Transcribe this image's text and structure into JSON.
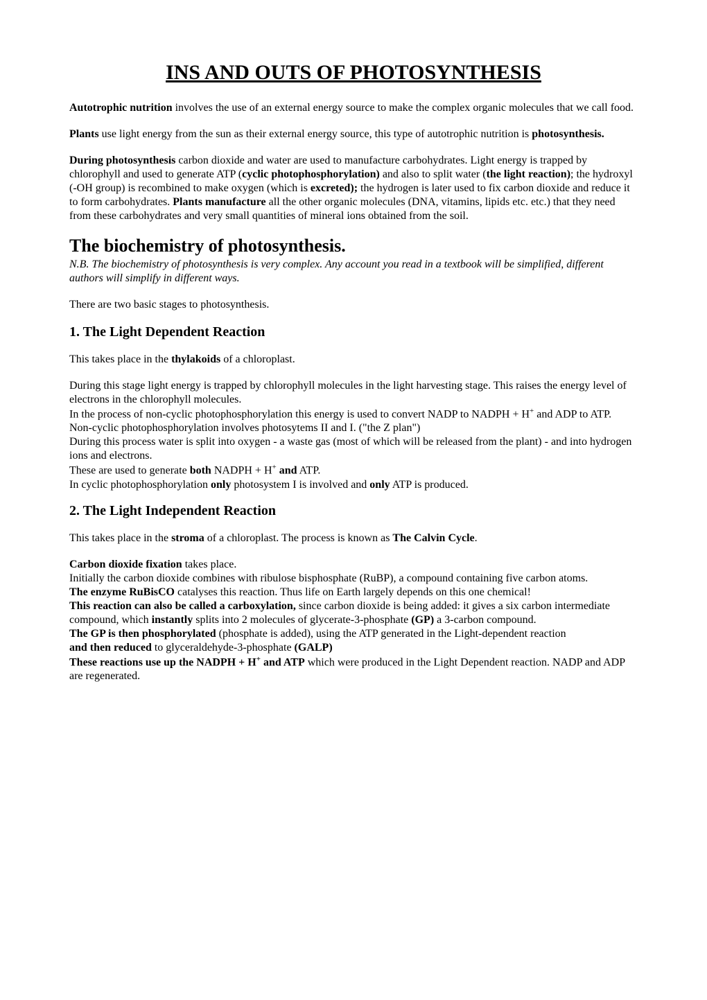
{
  "title": "INS AND OUTS OF PHOTOSYNTHESIS",
  "p1_b": "Autotrophic nutrition",
  "p1_rest": " involves the use of an external energy source to make the complex organic molecules that we call food.",
  "p2_b1": "Plants",
  "p2_t1": " use light energy from the sun as their external energy source, this type of autotrophic nutrition is ",
  "p2_b2": "photosynthesis.",
  "p3_b1": "During photosynthesis",
  "p3_t1": " carbon dioxide and water are used to manufacture carbohydrates. Light energy is trapped by chlorophyll and used to generate ATP (",
  "p3_b2": "cyclic photophosphorylation)",
  "p3_t2": " and also to split water (",
  "p3_b3": "the light reaction)",
  "p3_t3": "; the hydroxyl (-OH group) is recombined to make oxygen (which is ",
  "p3_b4": "excreted);",
  "p3_t4": " the hydrogen is later used to fix carbon dioxide and reduce it to form carbohydrates. ",
  "p3_b5": "Plants manufacture",
  "p3_t5": " all the other organic molecules (DNA, vitamins, lipids etc. etc.) that they need from these carbohydrates and very small quantities of mineral ions obtained from the soil.",
  "h2": "The biochemistry of photosynthesis.",
  "nb": "N.B. The biochemistry of photosynthesis is very complex. Any account you read in a textbook will be simplified, different authors will simplify in different ways.",
  "p4": "There are two basic stages to photosynthesis.",
  "h3_1": "1. The Light Dependent Reaction",
  "p5_t1": "This takes place in the ",
  "p5_b1": "thylakoids",
  "p5_t2": " of a chloroplast.",
  "b1_l1": "During this stage light energy is trapped by chlorophyll molecules in the light harvesting stage. This raises the energy level of electrons in the chlorophyll molecules.",
  "b1_l2a": "In the process of non-cyclic photophosphorylation this energy is used to convert NADP to NADPH + H",
  "b1_l2sup": "+",
  "b1_l2b": " and ADP to ATP.",
  "b1_l3": "Non-cyclic photophosphorylation involves photosytems II and I. (\"the Z plan\")",
  "b1_l4": "During this process water is split into oxygen - a waste gas (most of which will be released from the plant) - and into hydrogen ions and electrons.",
  "b1_l5a": "These are used to generate ",
  "b1_l5b": "both",
  "b1_l5c": " NADPH + H",
  "b1_l5sup": "+",
  "b1_l5d": " ",
  "b1_l5e": "and",
  "b1_l5f": " ATP.",
  "b1_l6a": "In cyclic photophosphorylation ",
  "b1_l6b": "only",
  "b1_l6c": " photosystem I is involved and ",
  "b1_l6d": "only",
  "b1_l6e": " ATP is produced.",
  "h3_2": "2. The Light Independent Reaction",
  "p6_t1": "This takes place in the ",
  "p6_b1": "stroma",
  "p6_t2": " of a chloroplast. The process is known as ",
  "p6_b2": "The Calvin Cycle",
  "p6_t3": ".",
  "b2_l1b": "Carbon dioxide fixation",
  "b2_l1t": " takes place.",
  "b2_l2": "Initially the carbon dioxide combines with ribulose bisphosphate (RuBP), a compound containing five carbon atoms.",
  "b2_l3b": "The enzyme RuBisCO",
  "b2_l3t": " catalyses this reaction.  Thus life on Earth largely depends on this one chemical!",
  "b2_l4b": "This reaction can also be called a carboxylation,",
  "b2_l4t1": " since carbon dioxide is being added: it gives a six carbon intermediate compound, which ",
  "b2_l4b2": "instantly",
  "b2_l4t2": " splits into 2 molecules of glycerate-3-phosphate ",
  "b2_l4b3": "(GP)",
  "b2_l4t3": " a 3-carbon compound.",
  "b2_l5b": "The GP is then phosphorylated",
  "b2_l5t": " (phosphate is added), using the ATP generated in the Light-dependent reaction",
  "b2_l6b": "and then reduced",
  "b2_l6t": " to glyceraldehyde-3-phosphate ",
  "b2_l6b2": "(GALP)",
  "b2_l7b": "These reactions use up the NADPH + H",
  "b2_l7sup": "+",
  "b2_l7b2": " and ATP",
  "b2_l7t": " which were produced in the Light Dependent reaction. NADP and ADP are regenerated."
}
